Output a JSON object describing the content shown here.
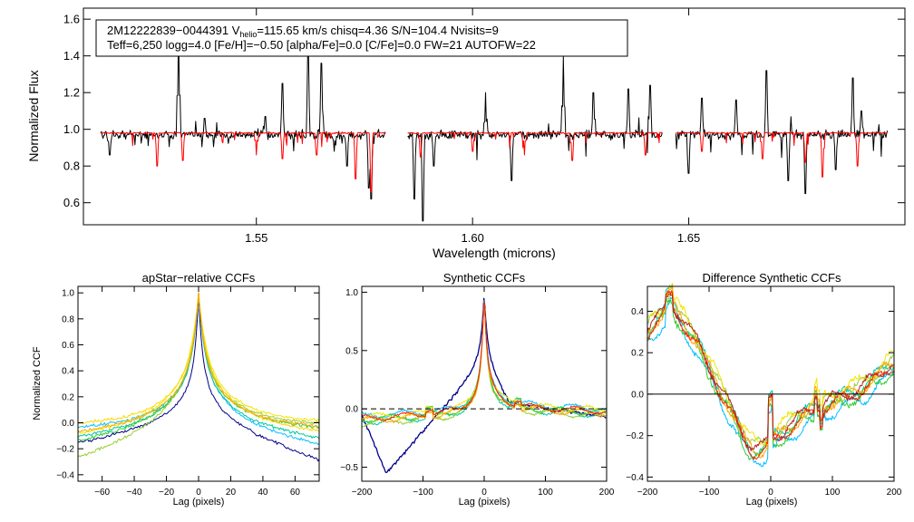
{
  "chart_data": [
    {
      "id": "spectrum",
      "type": "line",
      "title": "",
      "xlabel": "Wavelength (microns)",
      "ylabel": "Normalized Flux",
      "xlim": [
        1.51,
        1.7
      ],
      "ylim": [
        0.48,
        1.66
      ],
      "xticks": [
        1.55,
        1.6,
        1.65
      ],
      "xtick_labels": [
        "1.55",
        "1.60",
        "1.65"
      ],
      "yticks": [
        0.6,
        0.8,
        1.0,
        1.2,
        1.4,
        1.6
      ],
      "ytick_labels": [
        "0.6",
        "0.8",
        "1.0",
        "1.2",
        "1.4",
        "1.6"
      ],
      "chips": [
        [
          1.514,
          1.58
        ],
        [
          1.585,
          1.644
        ],
        [
          1.647,
          1.696
        ]
      ],
      "series": [
        {
          "name": "observed",
          "color": "#000000",
          "continuum": 0.97,
          "features": [
            [
              1.516,
              0.86
            ],
            [
              1.532,
              1.58
            ],
            [
              1.538,
              1.06
            ],
            [
              1.552,
              1.07
            ],
            [
              1.556,
              1.25
            ],
            [
              1.562,
              1.44
            ],
            [
              1.565,
              1.36
            ],
            [
              1.568,
              0.88
            ],
            [
              1.571,
              0.8
            ],
            [
              1.576,
              0.68
            ],
            [
              1.5765,
              0.62
            ],
            [
              1.5865,
              0.62
            ],
            [
              1.5885,
              0.5
            ],
            [
              1.591,
              0.8
            ],
            [
              1.603,
              1.2
            ],
            [
              1.609,
              0.72
            ],
            [
              1.621,
              1.4
            ],
            [
              1.628,
              1.2
            ],
            [
              1.636,
              1.22
            ],
            [
              1.641,
              1.24
            ],
            [
              1.65,
              0.76
            ],
            [
              1.653,
              1.17
            ],
            [
              1.661,
              1.16
            ],
            [
              1.668,
              1.32
            ],
            [
              1.673,
              0.72
            ],
            [
              1.677,
              0.65
            ],
            [
              1.684,
              0.78
            ],
            [
              1.688,
              1.28
            ],
            [
              1.69,
              1.1
            ]
          ]
        },
        {
          "name": "model",
          "color": "#ff0000",
          "continuum": 0.98,
          "features": [
            [
              1.527,
              0.8
            ],
            [
              1.533,
              0.83
            ],
            [
              1.55,
              0.86
            ],
            [
              1.556,
              0.84
            ],
            [
              1.564,
              0.86
            ],
            [
              1.573,
              0.73
            ],
            [
              1.5765,
              0.66
            ],
            [
              1.588,
              0.85
            ],
            [
              1.6,
              0.88
            ],
            [
              1.612,
              0.86
            ],
            [
              1.623,
              0.83
            ],
            [
              1.64,
              0.86
            ],
            [
              1.653,
              0.88
            ],
            [
              1.667,
              0.84
            ],
            [
              1.677,
              0.82
            ],
            [
              1.681,
              0.74
            ],
            [
              1.689,
              0.8
            ]
          ]
        }
      ],
      "annotation": {
        "line1_prefix": "2M12222839−0044391  V",
        "line1_sub": "helio",
        "line1_rest": "=115.65 km/s  chisq=4.36  S/N=104.4  Nvisits=9",
        "line2": "Teff=6,250 logg=4.0 [Fe/H]=−0.50 [alpha/Fe]=0.0 [C/Fe]=0.0 FW=21 AUTOFW=22"
      }
    },
    {
      "id": "ccf1",
      "type": "line",
      "title": "apStar−relative CCFs",
      "xlabel": "Lag (pixels)",
      "ylabel": "Normalized CCF",
      "xlim": [
        -75,
        75
      ],
      "ylim": [
        -0.45,
        1.05
      ],
      "xticks": [
        -60,
        -40,
        -20,
        0,
        20,
        40,
        60
      ],
      "xtick_labels": [
        "−60",
        "−40",
        "−20",
        "0",
        "20",
        "40",
        "60"
      ],
      "yticks": [
        -0.4,
        -0.2,
        0.0,
        0.2,
        0.4,
        0.6,
        0.8,
        1.0
      ],
      "ytick_labels": [
        "−0.4",
        "−0.2",
        "0.0",
        "0.2",
        "0.4",
        "0.6",
        "0.8",
        "1.0"
      ],
      "series": [
        {
          "name": "navy",
          "color": "#00008b",
          "left": -0.17,
          "right": -0.3,
          "width": 7
        },
        {
          "name": "cyan",
          "color": "#00bfff",
          "left": -0.05,
          "right": -0.18,
          "width": 12
        },
        {
          "name": "teal",
          "color": "#00c8a0",
          "left": -0.12,
          "right": -0.13,
          "width": 12
        },
        {
          "name": "green",
          "color": "#32cd32",
          "left": -0.15,
          "right": -0.05,
          "width": 13
        },
        {
          "name": "yellowgreen",
          "color": "#9acd32",
          "left": -0.28,
          "right": -0.02,
          "width": 14
        },
        {
          "name": "yellow",
          "color": "#f0e600",
          "left": -0.1,
          "right": 0.0,
          "width": 16
        },
        {
          "name": "gold",
          "color": "#ffd700",
          "left": -0.02,
          "right": -0.08,
          "width": 15
        },
        {
          "name": "orange",
          "color": "#ffa500",
          "left": -0.08,
          "right": -0.04,
          "width": 13
        }
      ]
    },
    {
      "id": "ccf2",
      "type": "line",
      "title": "Synthetic CCFs",
      "xlabel": "Lag (pixels)",
      "ylabel": "",
      "xlim": [
        -200,
        200
      ],
      "ylim": [
        -0.62,
        1.05
      ],
      "xticks": [
        -200,
        -100,
        0,
        100,
        200
      ],
      "xtick_labels": [
        "−200",
        "−100",
        "0",
        "100",
        "200"
      ],
      "yticks": [
        -0.5,
        0.0,
        0.5,
        1.0
      ],
      "ytick_labels": [
        "−0.5",
        "0.0",
        "0.5",
        "1.0"
      ],
      "zero_line": true,
      "series": [
        {
          "name": "navy",
          "color": "#00008b",
          "special": "navy"
        },
        {
          "name": "cyan",
          "color": "#00bfff",
          "offset": 0.03
        },
        {
          "name": "teal",
          "color": "#00c8a0",
          "offset": -0.02
        },
        {
          "name": "green",
          "color": "#32cd32",
          "offset": 0.0
        },
        {
          "name": "yellowgreen",
          "color": "#9acd32",
          "offset": -0.03
        },
        {
          "name": "yellow",
          "color": "#f0e600",
          "offset": 0.02
        },
        {
          "name": "orange",
          "color": "#ffa500",
          "offset": -0.01
        },
        {
          "name": "red",
          "color": "#ff2000",
          "offset": 0.01
        }
      ]
    },
    {
      "id": "ccf3",
      "type": "line",
      "title": "Difference Synthetic CCFs",
      "xlabel": "Lag (pixels)",
      "ylabel": "",
      "xlim": [
        -200,
        200
      ],
      "ylim": [
        -0.42,
        0.52
      ],
      "xticks": [
        -200,
        -100,
        0,
        100,
        200
      ],
      "xtick_labels": [
        "−200",
        "−100",
        "0",
        "100",
        "200"
      ],
      "yticks": [
        -0.4,
        -0.2,
        0.0,
        0.2,
        0.4
      ],
      "ytick_labels": [
        "−0.4",
        "−0.2",
        "0.0",
        "0.2",
        "0.4"
      ],
      "zero_line": true,
      "series": [
        {
          "name": "cyan",
          "color": "#00bfff",
          "offset": -0.04
        },
        {
          "name": "teal",
          "color": "#00c8a0",
          "offset": 0.02
        },
        {
          "name": "green",
          "color": "#32cd32",
          "offset": -0.02
        },
        {
          "name": "yellowgreen",
          "color": "#9acd32",
          "offset": 0.03
        },
        {
          "name": "yellow",
          "color": "#f0e600",
          "offset": 0.05
        },
        {
          "name": "orange",
          "color": "#ffa500",
          "offset": 0.01
        },
        {
          "name": "red",
          "color": "#ff2000",
          "offset": 0.0
        },
        {
          "name": "darkred",
          "color": "#b22222",
          "offset": 0.02
        }
      ]
    }
  ]
}
